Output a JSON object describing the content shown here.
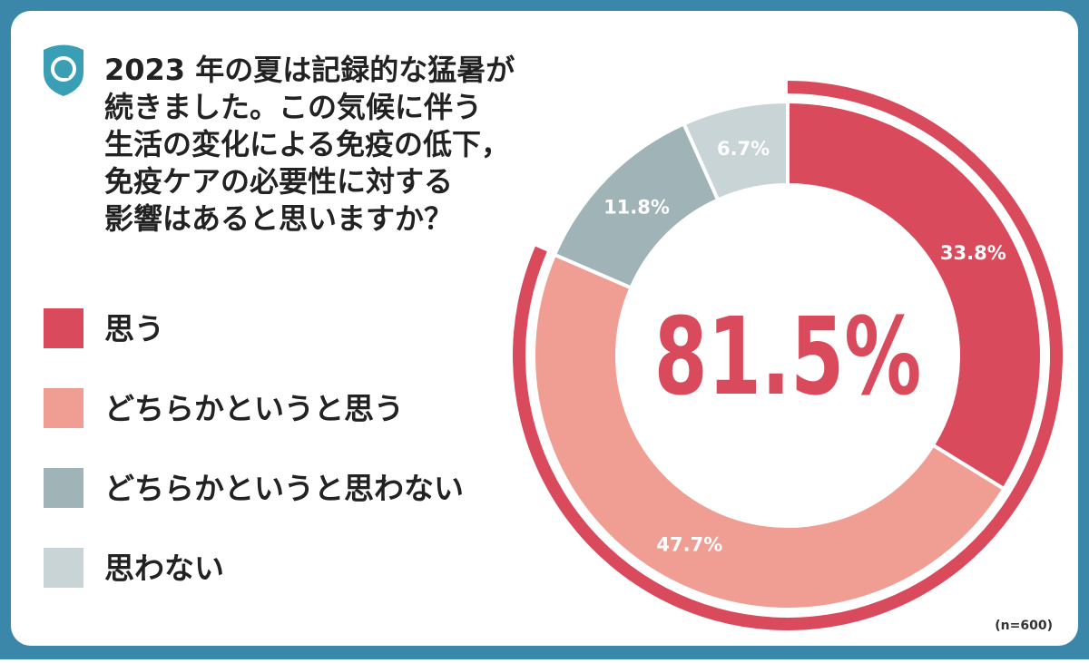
{
  "chart_data": {
    "type": "donut",
    "title": [
      "2023 年の夏は記録的な猛暑が",
      "続きました。この気候に伴う",
      "生活の変化による免疫の低下，",
      "免疫ケアの必要性に対する",
      "影響はあると思いますか？"
    ],
    "categories": [
      "思う",
      "どちらかというと思う",
      "どちらかというと思わない",
      "思わない"
    ],
    "values": [
      33.8,
      47.7,
      11.8,
      6.7
    ],
    "value_labels": [
      "33.8%",
      "47.7%",
      "11.8%",
      "6.7%"
    ],
    "colors": [
      "#d94b5c",
      "#f09d93",
      "#a0b3b6",
      "#c9d4d6"
    ],
    "center_label": "81.5%",
    "note": "(n=600)"
  }
}
